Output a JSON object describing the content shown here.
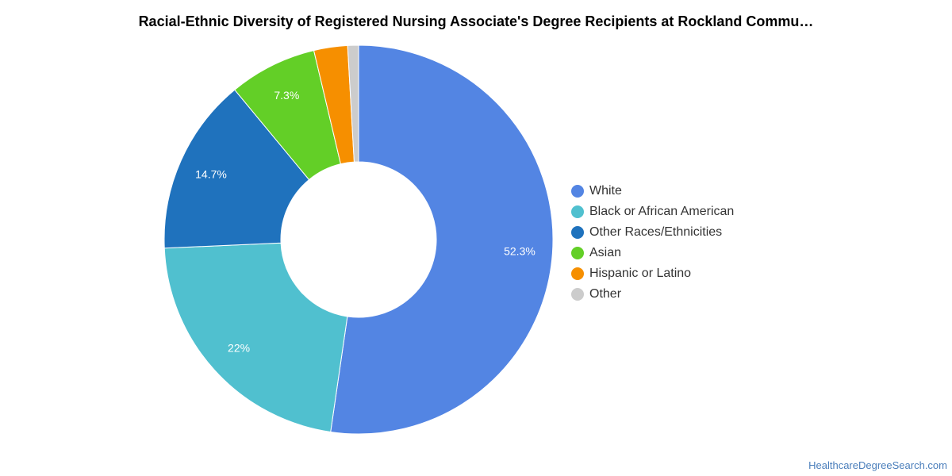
{
  "chart_data": {
    "type": "pie",
    "variant": "donut",
    "title": "Racial-Ethnic Diversity of Registered Nursing Associate's Degree Recipients at Rockland Commu…",
    "legend_position": "right",
    "slices": [
      {
        "label": "White",
        "value": 52.3,
        "data_label": "52.3%",
        "color": "#5385e3"
      },
      {
        "label": "Black or African American",
        "value": 22.0,
        "data_label": "22%",
        "color": "#50c0cf"
      },
      {
        "label": "Other Races/Ethnicities",
        "value": 14.7,
        "data_label": "14.7%",
        "color": "#1f72bd"
      },
      {
        "label": "Asian",
        "value": 7.3,
        "data_label": "7.3%",
        "color": "#63cf27"
      },
      {
        "label": "Hispanic or Latino",
        "value": 2.8,
        "data_label": "",
        "color": "#f68f00"
      },
      {
        "label": "Other",
        "value": 0.9,
        "data_label": "",
        "color": "#cccccc"
      }
    ]
  },
  "footer": {
    "source": "HealthcareDegreeSearch.com"
  }
}
